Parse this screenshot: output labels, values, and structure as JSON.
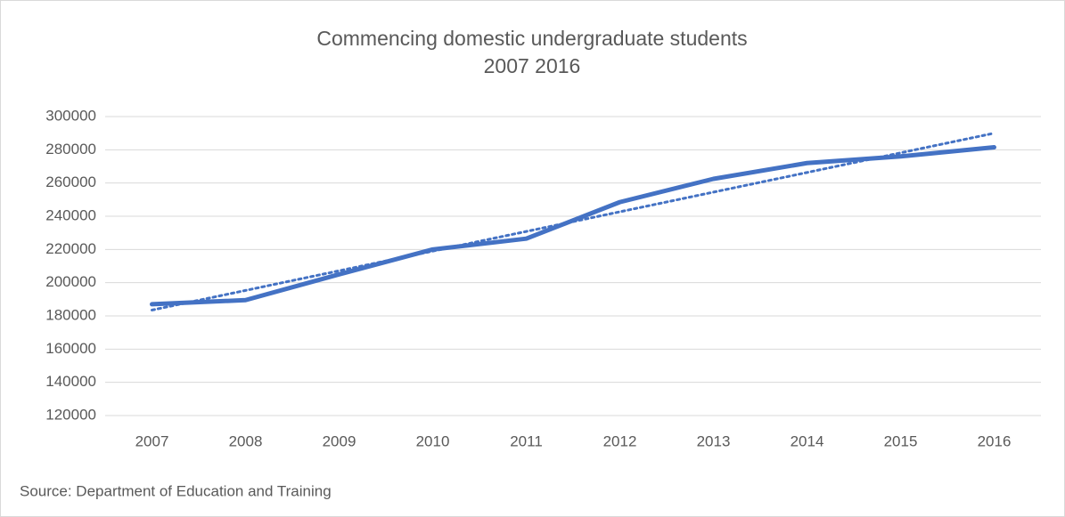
{
  "chart_data": {
    "type": "line",
    "title": "Commencing domestic undergraduate students",
    "subtitle": "2007 2016",
    "source": "Source: Department of Education and Training",
    "categories": [
      "2007",
      "2008",
      "2009",
      "2010",
      "2011",
      "2012",
      "2013",
      "2014",
      "2015",
      "2016"
    ],
    "series": [
      {
        "color": "#4472c4",
        "values": [
          187000,
          189500,
          205000,
          220000,
          226500,
          248500,
          262500,
          272000,
          276000,
          281500
        ]
      }
    ],
    "trendline": {
      "color": "#4472c4",
      "style": "dotted",
      "values": [
        183500,
        195333,
        207167,
        219000,
        230833,
        242667,
        254500,
        266333,
        278167,
        290000
      ]
    },
    "ylim": [
      120000,
      300000
    ],
    "yticks": [
      120000,
      140000,
      160000,
      180000,
      200000,
      220000,
      240000,
      260000,
      280000,
      300000
    ],
    "grid": true
  }
}
